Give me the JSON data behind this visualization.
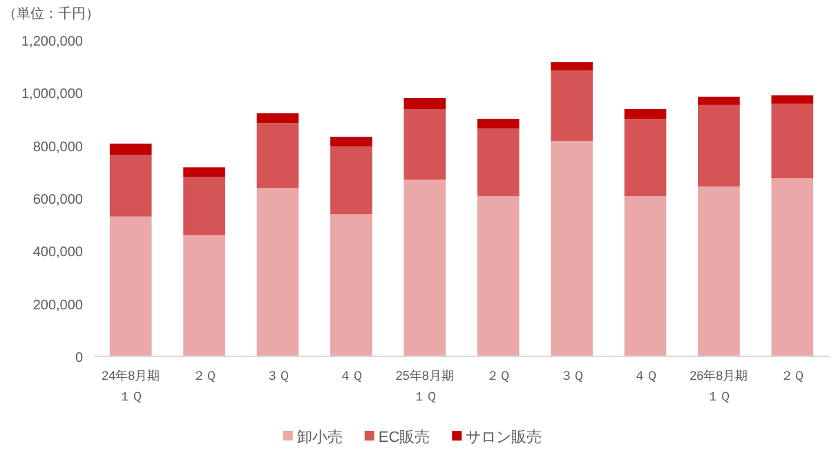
{
  "chart_data": {
    "type": "bar",
    "ylabel": "（単位：千円）",
    "stacked": true,
    "legend": "bottom",
    "categories": [
      "24年8月期１Ｑ",
      "２Ｑ",
      "３Ｑ",
      "４Ｑ",
      "25年8月期１Ｑ",
      "２Ｑ",
      "３Ｑ",
      "４Ｑ",
      "26年8月期１Ｑ",
      "２Ｑ"
    ],
    "series": [
      {
        "name": "卸小売",
        "color": "#eaa8a9",
        "values": [
          530000,
          460000,
          639000,
          539000,
          670000,
          607000,
          817000,
          607000,
          644000,
          675000
        ]
      },
      {
        "name": "EC販売",
        "color": "#d55556",
        "values": [
          235000,
          221000,
          246000,
          257000,
          268000,
          257000,
          268000,
          294000,
          310000,
          284000
        ]
      },
      {
        "name": "サロン販売",
        "color": "#c00000",
        "values": [
          42000,
          36000,
          37000,
          37000,
          42000,
          37000,
          31000,
          37000,
          31000,
          31000
        ]
      }
    ],
    "ylim": [
      0,
      1200000
    ],
    "yticks": [
      0,
      {
        "value": 200000,
        "label": "200,000"
      },
      {
        "value": 400000,
        "label": "400,000"
      },
      {
        "value": 600000,
        "label": "600,000"
      },
      {
        "value": 800000,
        "label": "800,000"
      },
      {
        "value": 1000000,
        "label": "1,000,000"
      },
      {
        "value": 1200000,
        "label": "1,200,000"
      }
    ]
  }
}
